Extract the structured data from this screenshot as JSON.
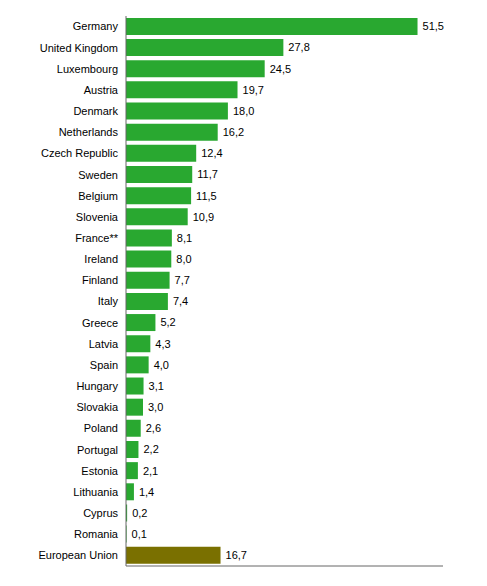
{
  "chart_data": {
    "type": "bar",
    "orientation": "horizontal",
    "categories": [
      "Germany",
      "United Kingdom",
      "Luxembourg",
      "Austria",
      "Denmark",
      "Netherlands",
      "Czech Republic",
      "Sweden",
      "Belgium",
      "Slovenia",
      "France**",
      "Ireland",
      "Finland",
      "Italy",
      "Greece",
      "Latvia",
      "Spain",
      "Hungary",
      "Slovakia",
      "Poland",
      "Portugal",
      "Estonia",
      "Lithuania",
      "Cyprus",
      "Romania",
      "European Union"
    ],
    "values": [
      51.5,
      27.8,
      24.5,
      19.7,
      18.0,
      16.2,
      12.4,
      11.7,
      11.5,
      10.9,
      8.1,
      8.0,
      7.7,
      7.4,
      5.2,
      4.3,
      4.0,
      3.1,
      3.0,
      2.6,
      2.2,
      2.1,
      1.4,
      0.2,
      0.1,
      16.7
    ],
    "value_labels": [
      "51,5",
      "27,8",
      "24,5",
      "19,7",
      "18,0",
      "16,2",
      "12,4",
      "11,7",
      "11,5",
      "10,9",
      "8,1",
      "8,0",
      "7,7",
      "7,4",
      "5,2",
      "4,3",
      "4,0",
      "3,1",
      "3,0",
      "2,6",
      "2,2",
      "2,1",
      "1,4",
      "0,2",
      "0,1",
      "16,7"
    ],
    "colors": [
      "#29a830",
      "#29a830",
      "#29a830",
      "#29a830",
      "#29a830",
      "#29a830",
      "#29a830",
      "#29a830",
      "#29a830",
      "#29a830",
      "#29a830",
      "#29a830",
      "#29a830",
      "#29a830",
      "#29a830",
      "#29a830",
      "#29a830",
      "#29a830",
      "#29a830",
      "#29a830",
      "#29a830",
      "#29a830",
      "#29a830",
      "#29a830",
      "#29a830",
      "#7a7000"
    ],
    "xlim": [
      0,
      56
    ],
    "data_labels": true,
    "tick_labels": "y",
    "grid": false
  }
}
